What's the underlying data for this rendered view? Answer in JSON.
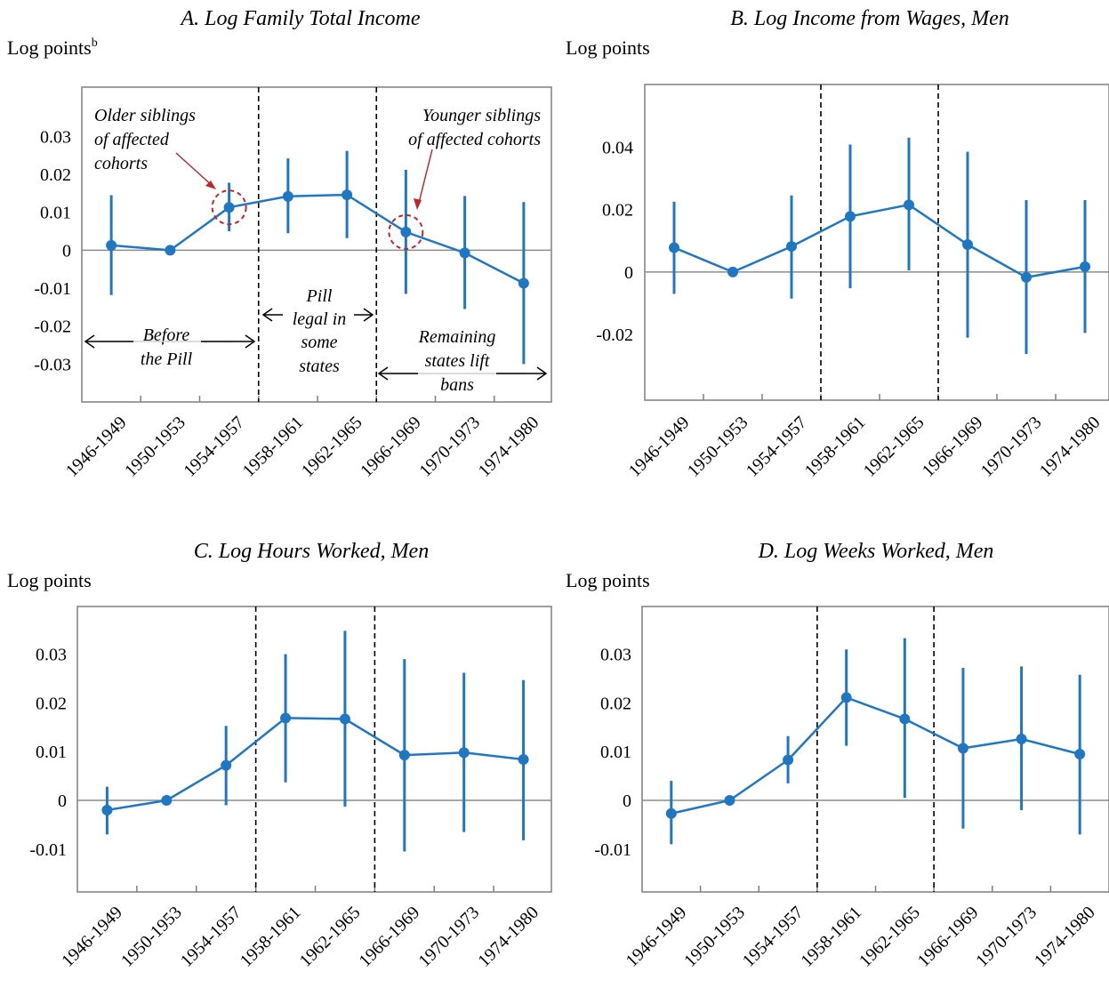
{
  "chart_data": [
    {
      "type": "line",
      "title": "A. Log Family Total Income",
      "ylabel": "Log points",
      "ylabel_superscript": "b",
      "categories": [
        "1946-1949",
        "1950-1953",
        "1954-1957",
        "1958-1961",
        "1962-1965",
        "1966-1969",
        "1970-1973",
        "1974-1980"
      ],
      "values": [
        0.0013,
        0.0,
        0.0113,
        0.0142,
        0.0146,
        0.0048,
        -0.0007,
        -0.0087
      ],
      "ci_low": [
        -0.0118,
        0.0,
        0.005,
        0.0045,
        0.0032,
        -0.0115,
        -0.0155,
        -0.03
      ],
      "ci_high": [
        0.0145,
        0.0,
        0.0178,
        0.0242,
        0.0262,
        0.0212,
        0.0143,
        0.0127
      ],
      "ylim": [
        -0.04,
        0.043
      ],
      "yticks": [
        0.03,
        0.02,
        0.01,
        0,
        -0.01,
        -0.02,
        -0.03
      ],
      "ytick_labels": [
        "0.03",
        "0.02",
        "0.01",
        "0",
        "-0.01",
        "-0.02",
        "-0.03"
      ],
      "dividers_after_index": [
        2,
        4
      ],
      "highlight_indices": [
        2,
        5
      ],
      "annotations": {
        "older_line1": "Older siblings",
        "older_line2": "of affected",
        "older_line3": "cohorts",
        "younger_line1": "Younger siblings",
        "younger_line2": "of affected cohorts",
        "before_line1": "Before",
        "before_line2": "the Pill",
        "pill_line1": "Pill",
        "pill_line2": "legal in",
        "pill_line3": "some",
        "pill_line4": "states",
        "remaining_line1": "Remaining",
        "remaining_line2": "states lift",
        "remaining_line3": "bans"
      }
    },
    {
      "type": "line",
      "title": "B. Log Income from Wages, Men",
      "ylabel": "Log points",
      "categories": [
        "1946-1949",
        "1950-1953",
        "1954-1957",
        "1958-1961",
        "1962-1965",
        "1966-1969",
        "1970-1973",
        "1974-1980"
      ],
      "values": [
        0.0078,
        0.0,
        0.0082,
        0.0178,
        0.0215,
        0.0088,
        -0.0017,
        0.0017
      ],
      "ci_low": [
        -0.007,
        0.0,
        -0.0085,
        -0.0052,
        0.0005,
        -0.021,
        -0.0262,
        -0.0195
      ],
      "ci_high": [
        0.0225,
        0.0,
        0.0245,
        0.0408,
        0.043,
        0.0385,
        0.023,
        0.023
      ],
      "ylim": [
        -0.041,
        0.06
      ],
      "yticks": [
        0.04,
        0.02,
        0,
        -0.02
      ],
      "ytick_labels": [
        "0.04",
        "0.02",
        "0",
        "-0.02"
      ],
      "dividers_after_index": [
        2,
        4
      ]
    },
    {
      "type": "line",
      "title": "C. Log Hours Worked, Men",
      "ylabel": "Log points",
      "categories": [
        "1946-1949",
        "1950-1953",
        "1954-1957",
        "1958-1961",
        "1962-1965",
        "1966-1969",
        "1970-1973",
        "1974-1980"
      ],
      "values": [
        -0.002,
        0.0,
        0.0072,
        0.0169,
        0.0167,
        0.0093,
        0.0098,
        0.0084
      ],
      "ci_low": [
        -0.007,
        0.0,
        -0.001,
        0.0037,
        -0.0013,
        -0.0105,
        -0.0065,
        -0.0082
      ],
      "ci_high": [
        0.0028,
        0.0,
        0.0153,
        0.03,
        0.0348,
        0.029,
        0.0262,
        0.0247
      ],
      "ylim": [
        -0.0188,
        0.0398
      ],
      "yticks": [
        0.03,
        0.02,
        0.01,
        0,
        -0.01
      ],
      "ytick_labels": [
        "0.03",
        "0.02",
        "0.01",
        "0",
        "-0.01"
      ],
      "dividers_after_index": [
        2,
        4
      ]
    },
    {
      "type": "line",
      "title": "D. Log Weeks Worked, Men",
      "ylabel": "Log points",
      "categories": [
        "1946-1949",
        "1950-1953",
        "1954-1957",
        "1958-1961",
        "1962-1965",
        "1966-1969",
        "1970-1973",
        "1974-1980"
      ],
      "values": [
        -0.0027,
        0.0,
        0.0083,
        0.0211,
        0.0167,
        0.0107,
        0.0126,
        0.0095
      ],
      "ci_low": [
        -0.009,
        0.0,
        0.0035,
        0.0112,
        0.0005,
        -0.0058,
        -0.002,
        -0.007
      ],
      "ci_high": [
        0.004,
        0.0,
        0.0132,
        0.031,
        0.0333,
        0.0272,
        0.0275,
        0.0258
      ],
      "ylim": [
        -0.0188,
        0.0398
      ],
      "yticks": [
        0.03,
        0.02,
        0.01,
        0,
        -0.01
      ],
      "ytick_labels": [
        "0.03",
        "0.02",
        "0.01",
        "0",
        "-0.01"
      ],
      "dividers_after_index": [
        2,
        4
      ]
    }
  ],
  "colors": {
    "series": "#1f77c4",
    "highlight": "#c0262d",
    "axis": "#7f7f7f",
    "zero_line": "#8c8c8c",
    "divider": "#000000",
    "annotation_rule": "#cfcfcf"
  }
}
